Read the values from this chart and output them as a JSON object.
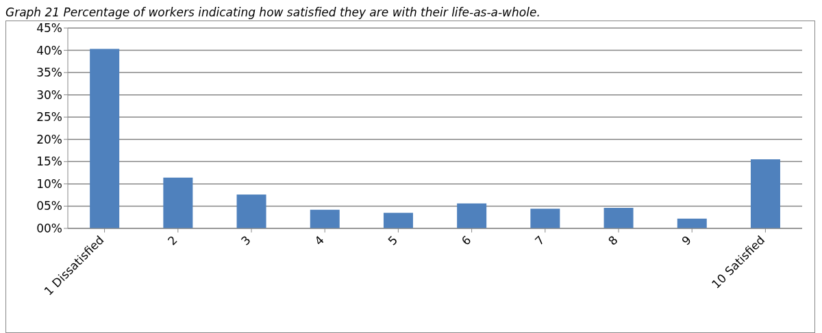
{
  "chart_data": {
    "type": "bar",
    "title": "Graph 21 Percentage of workers indicating how satisfied they are with their life-as-a-whole.",
    "categories": [
      "1 Dissatisfied",
      "2",
      "3",
      "4",
      "5",
      "6",
      "7",
      "8",
      "9",
      "10 Satisfied"
    ],
    "values": [
      40.3,
      11.4,
      7.6,
      4.2,
      3.5,
      5.6,
      4.4,
      4.6,
      2.2,
      15.5
    ],
    "color": "#4f81bd",
    "ylim": [
      0,
      45
    ],
    "yticks": [
      {
        "value": 0,
        "label": "00%"
      },
      {
        "value": 5,
        "label": "05%"
      },
      {
        "value": 10,
        "label": "10%"
      },
      {
        "value": 15,
        "label": "15%"
      },
      {
        "value": 20,
        "label": "20%"
      },
      {
        "value": 25,
        "label": "25%"
      },
      {
        "value": 30,
        "label": "30%"
      },
      {
        "value": 35,
        "label": "35%"
      },
      {
        "value": 40,
        "label": "40%"
      },
      {
        "value": 45,
        "label": "45%"
      }
    ],
    "grid": "y"
  }
}
